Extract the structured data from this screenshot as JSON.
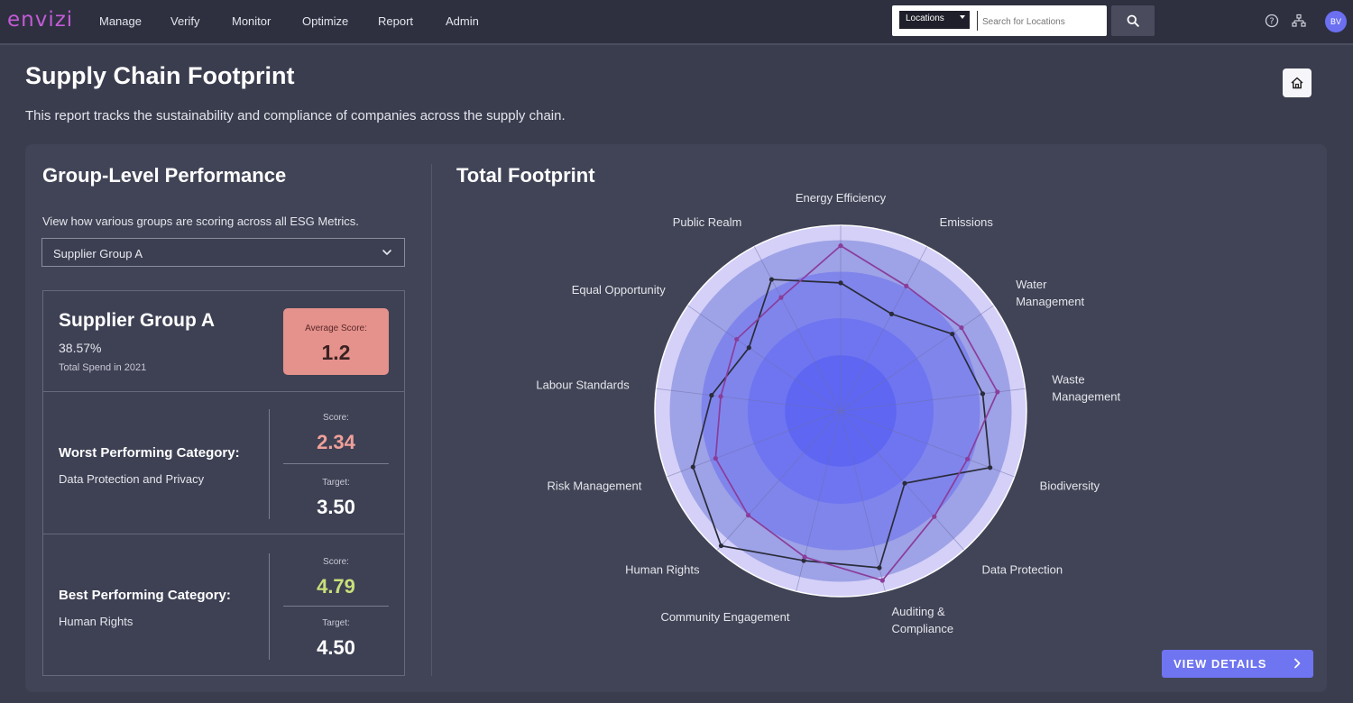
{
  "nav": {
    "logo": "envizi",
    "items": [
      "Manage",
      "Verify",
      "Monitor",
      "Optimize",
      "Report",
      "Admin"
    ],
    "search": {
      "scope": "Locations",
      "placeholder": "Search for Locations"
    },
    "avatar": "BV"
  },
  "header": {
    "title": "Supply Chain Footprint",
    "description": "This report tracks the sustainability and compliance of companies across the supply chain."
  },
  "group": {
    "title": "Group-Level Performance",
    "subtitle": "View how various groups are scoring across all ESG Metrics.",
    "selected": "Supplier Group A",
    "name": "Supplier Group A",
    "percent": "38.57%",
    "spend_label": "Total Spend in 2021",
    "avg_label": "Average Score:",
    "avg_value": "1.2",
    "worst": {
      "title": "Worst Performing Category:",
      "category": "Data Protection and Privacy",
      "score_label": "Score:",
      "score": "2.34",
      "target_label": "Target:",
      "target": "3.50"
    },
    "best": {
      "title": "Best Performing Category:",
      "category": "Human Rights",
      "score_label": "Score:",
      "score": "4.79",
      "target_label": "Target:",
      "target": "4.50"
    }
  },
  "footprint": {
    "title": "Total Footprint",
    "view_details": "VIEW DETAILS"
  },
  "colors": {
    "accent": "#6f74f0",
    "worst_score": "#f0a09a",
    "best_score": "#c8e07a",
    "series_dark": "#2a2c3a",
    "series_purple": "#8a3d9a"
  },
  "chart_data": {
    "type": "radar",
    "title": "Total Footprint",
    "categories": [
      "Energy Efficiency",
      "Emissions",
      "Water Management",
      "Waste Management",
      "Biodiversity",
      "Data Protection",
      "Auditing & Compliance",
      "Community Engagement",
      "Human Rights",
      "Risk Management",
      "Labour Standards",
      "Equal Opportunity",
      "Public Realm"
    ],
    "bands": [
      0.3,
      0.5,
      0.75,
      0.92,
      1.0
    ],
    "series": [
      {
        "values": [
          0.69,
          0.59,
          0.73,
          0.77,
          0.86,
          0.52,
          0.87,
          0.83,
          0.97,
          0.85,
          0.7,
          0.6,
          0.8
        ]
      },
      {
        "values": [
          0.89,
          0.76,
          0.79,
          0.85,
          0.73,
          0.76,
          0.94,
          0.81,
          0.75,
          0.72,
          0.65,
          0.68,
          0.69
        ]
      }
    ],
    "rmax": 1,
    "grid": true,
    "legend": "none"
  }
}
